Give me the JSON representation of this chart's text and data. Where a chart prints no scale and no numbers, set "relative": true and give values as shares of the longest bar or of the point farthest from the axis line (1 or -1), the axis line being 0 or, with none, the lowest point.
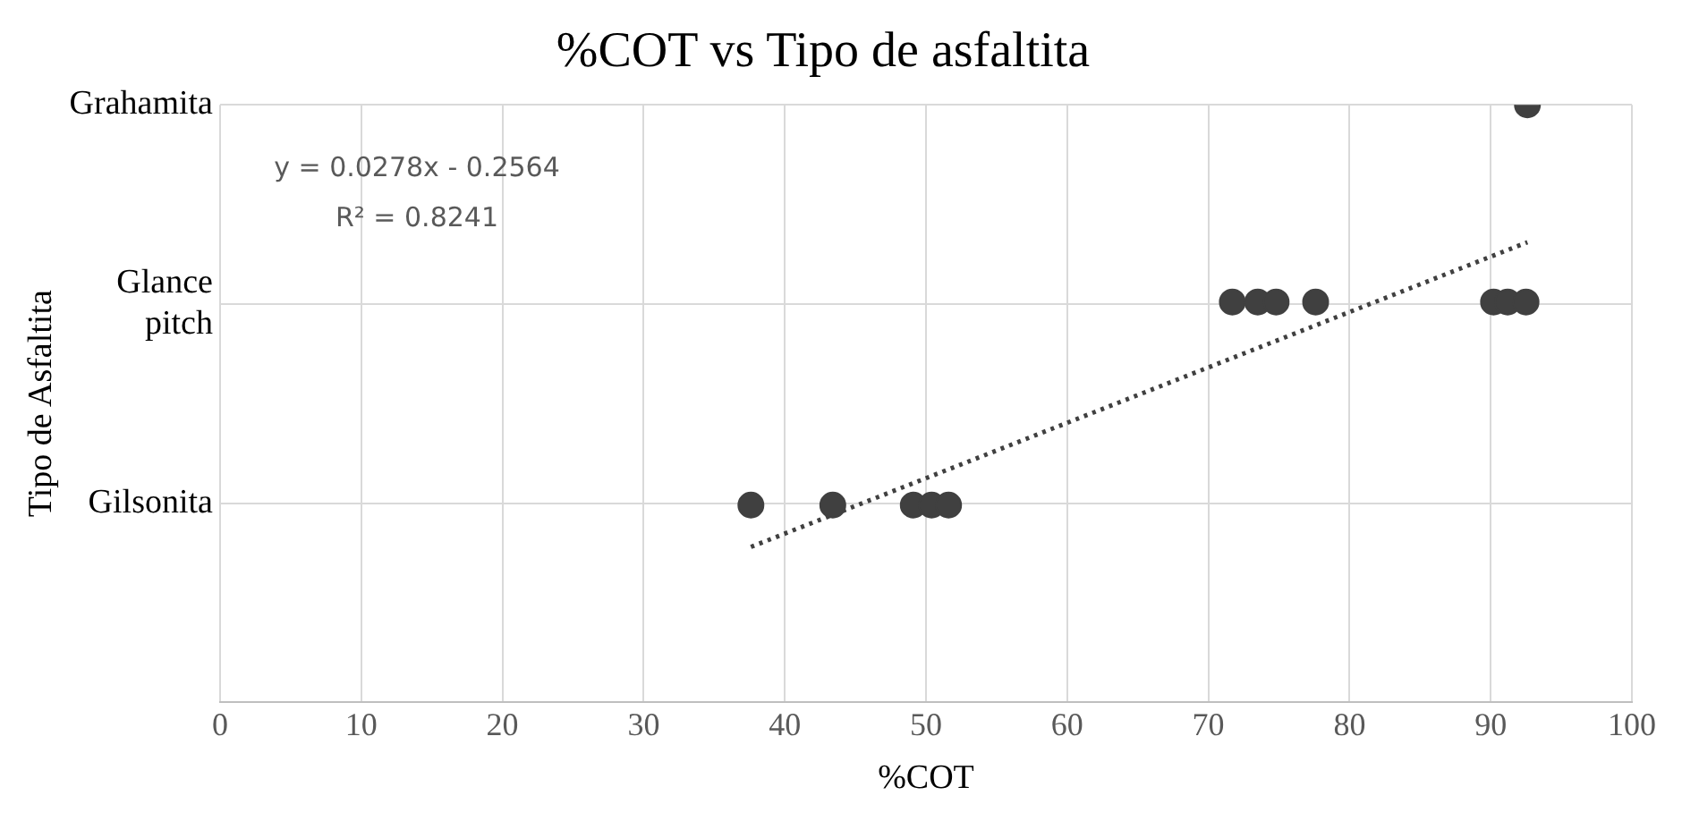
{
  "chart_data": {
    "type": "scatter",
    "title": "%COT vs Tipo de asfaltita",
    "xlabel": "%COT",
    "ylabel": "Tipo de Asfaltita",
    "relative": true,
    "y_categories": [
      "Grahamita",
      "Glance pitch",
      "Gilsonita"
    ],
    "series": [
      {
        "type": "scatter",
        "color": "#404040",
        "x": [
          37.6,
          43.4,
          49.1,
          50.4,
          51.6,
          71.7,
          73.5,
          74.8,
          77.6,
          90.2,
          91.2,
          92.5,
          92.6
        ],
        "values": [
          0.33,
          0.33,
          0.33,
          0.33,
          0.33,
          0.67,
          0.67,
          0.67,
          0.67,
          0.67,
          0.67,
          0.67,
          1
        ]
      },
      {
        "type": "line",
        "color": "#404040",
        "line_style": "dotted",
        "marker": "none",
        "x": [
          37.6,
          92.6
        ],
        "values": [
          0.26,
          0.77
        ]
      }
    ],
    "annotations": [
      "y = 0.0278x - 0.2564",
      "R² = 0.8241"
    ],
    "xlim": [
      0,
      100
    ],
    "xticks": [
      0,
      10,
      20,
      30,
      40,
      50,
      60,
      70,
      80,
      90,
      100
    ],
    "grid": true,
    "legend": false,
    "marker": "circle"
  }
}
